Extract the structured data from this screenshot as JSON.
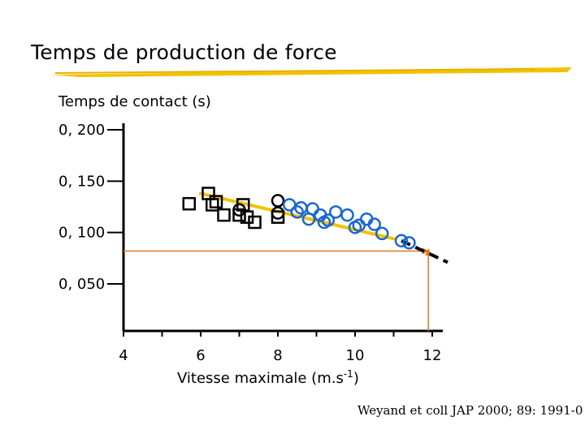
{
  "slide": {
    "title": "Temps de production de force",
    "source": "Weyand et coll JAP 2000; 89: 1991-0"
  },
  "colors": {
    "highlight": "#f2c200",
    "circle_blue": "#1a66d1",
    "guide_orange": "#e0791f",
    "marker_black": "#000000",
    "dashed": "#000000"
  },
  "chart_data": {
    "type": "scatter",
    "title": "Temps de production de force",
    "ylabel": "Temps de contact (s)",
    "xlabel": "Vitesse maximale (m.s",
    "xlabel_sup": "-1",
    "xlabel_end": ")",
    "xlim": [
      4,
      12
    ],
    "ylim": [
      0.0,
      0.2
    ],
    "x_ticks": [
      4,
      6,
      8,
      10,
      12
    ],
    "x_tick_labels": [
      "4",
      "6",
      "8",
      "10",
      "12"
    ],
    "y_ticks": [
      0.2,
      0.15,
      0.1,
      0.05
    ],
    "y_tick_labels": [
      "0, 200",
      "0, 150",
      "0, 100",
      "0, 050"
    ],
    "grid": false,
    "series": [
      {
        "name": "squares",
        "marker": "square",
        "points": [
          [
            5.7,
            0.128
          ],
          [
            6.3,
            0.127
          ],
          [
            6.4,
            0.13
          ],
          [
            6.2,
            0.138
          ],
          [
            6.6,
            0.117
          ],
          [
            7.0,
            0.117
          ],
          [
            7.1,
            0.127
          ],
          [
            7.2,
            0.115
          ],
          [
            7.4,
            0.11
          ],
          [
            8.0,
            0.115
          ]
        ]
      },
      {
        "name": "black circles",
        "marker": "circle",
        "points": [
          [
            7.0,
            0.122
          ],
          [
            8.0,
            0.131
          ],
          [
            8.0,
            0.119
          ]
        ]
      },
      {
        "name": "blue circles",
        "marker": "circle",
        "points": [
          [
            8.3,
            0.127
          ],
          [
            8.5,
            0.12
          ],
          [
            8.6,
            0.124
          ],
          [
            8.8,
            0.113
          ],
          [
            8.9,
            0.123
          ],
          [
            9.1,
            0.117
          ],
          [
            9.2,
            0.11
          ],
          [
            9.3,
            0.112
          ],
          [
            9.5,
            0.12
          ],
          [
            9.8,
            0.117
          ],
          [
            10.0,
            0.105
          ],
          [
            10.1,
            0.107
          ],
          [
            10.3,
            0.113
          ],
          [
            10.5,
            0.108
          ],
          [
            10.7,
            0.099
          ],
          [
            11.2,
            0.092
          ],
          [
            11.4,
            0.09
          ]
        ]
      }
    ],
    "trendline": {
      "x": [
        6.0,
        11.0
      ],
      "y": [
        0.138,
        0.094
      ]
    },
    "extrapolation": {
      "x": [
        11.2,
        12.4
      ],
      "y": [
        0.092,
        0.071
      ]
    },
    "guide_horizontal": {
      "y": 0.082,
      "x_from": 4.0,
      "x_to": 11.8
    },
    "guide_vertical": {
      "x": 11.9,
      "y_from": 0.0,
      "y_to": 0.08
    }
  }
}
